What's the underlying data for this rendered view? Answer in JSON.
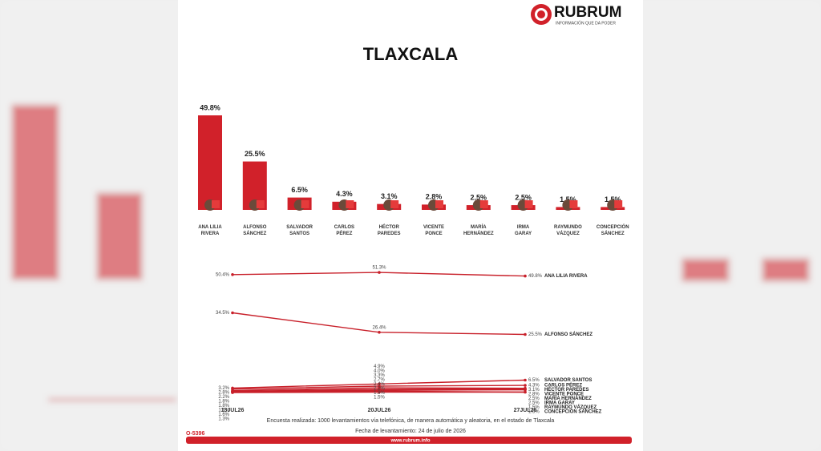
{
  "header": {
    "logo": "RUBRUM",
    "tagline": "INFORMACIÓN QUE DA PODER"
  },
  "chart_data": [
    {
      "type": "bar",
      "title": "TLAXCALA",
      "color": "#d1212a",
      "categories": [
        "ANA LILIA RIVERA",
        "ALFONSO SÁNCHEZ",
        "SALVADOR SANTOS",
        "CARLOS PÉREZ",
        "HÉCTOR PAREDES",
        "VICENTE PONCE",
        "MARÍA HERNÁNDEZ",
        "IRMA GARAY",
        "RAYMUNDO VÁZQUEZ",
        "CONCEPCIÓN SÁNCHEZ"
      ],
      "values": [
        49.8,
        25.5,
        6.5,
        4.3,
        3.1,
        2.8,
        2.5,
        2.5,
        1.5,
        1.5
      ],
      "value_labels": [
        "49.8%",
        "25.5%",
        "6.5%",
        "4.3%",
        "3.1%",
        "2.8%",
        "2.5%",
        "2.5%",
        "1.5%",
        "1.5%"
      ]
    },
    {
      "type": "line",
      "categories": [
        "13JUL26",
        "20JUL26",
        "27JUL26"
      ],
      "series": [
        {
          "name": "ANA LILIA RIVERA",
          "color": "#c8202a",
          "values": [
            50.4,
            51.3,
            49.8
          ],
          "value_labels": [
            "50.4%",
            "51.3%",
            "49.8%"
          ]
        },
        {
          "name": "ALFONSO SÁNCHEZ",
          "color": "#c8202a",
          "values": [
            34.5,
            26.4,
            25.5
          ],
          "value_labels": [
            "34.5%",
            "26.4%",
            "25.5%"
          ]
        },
        {
          "name": "SALVADOR SANTOS",
          "color": "#c8202a",
          "values": [
            3.2,
            4.9,
            6.5
          ],
          "value_labels": [
            "3.2%",
            "4.9%",
            "6.5%"
          ]
        },
        {
          "name": "CARLOS PÉREZ",
          "color": "#c8202a",
          "values": [
            2.8,
            4.0,
            4.3
          ],
          "value_labels": [
            "2.8%",
            "4.0%",
            "4.3%"
          ]
        },
        {
          "name": "HÉCTOR PAREDES",
          "color": "#c8202a",
          "values": [
            2.2,
            3.3,
            3.1
          ],
          "value_labels": [
            "2.2%",
            "3.3%",
            "3.1%"
          ]
        },
        {
          "name": "VICENTE PONCE",
          "color": "#c8202a",
          "values": [
            1.8,
            2.7,
            2.8
          ],
          "value_labels": [
            "1.8%",
            "2.7%",
            "2.8%"
          ]
        },
        {
          "name": "MARÍA HERNÁNDEZ",
          "color": "#c8202a",
          "values": [
            1.8,
            2.4,
            2.5
          ],
          "value_labels": [
            "1.8%",
            "2.4%",
            "2.5%"
          ]
        },
        {
          "name": "IRMA GARAY",
          "color": "#c8202a",
          "values": [
            1.6,
            2.2,
            2.5
          ],
          "value_labels": [
            "1.6%",
            "2.2%",
            "2.5%"
          ]
        },
        {
          "name": "RAYMUNDO VÁZQUEZ",
          "color": "#c8202a",
          "values": [
            1.6,
            1.9,
            1.5
          ],
          "value_labels": [
            "1.6%",
            "1.9%",
            "1.5%"
          ]
        },
        {
          "name": "CONCEPCIÓN SÁNCHEZ",
          "color": "#c8202a",
          "values": [
            1.3,
            1.5,
            1.5
          ],
          "value_labels": [
            "1.3%",
            "1.5%",
            "1.5%"
          ]
        }
      ]
    }
  ],
  "footer": {
    "note": "Encuesta realizada: 1000 levantamientos vía telefónica, de manera automática y aleatoria, en el estado de Tlaxcala",
    "date": "Fecha de levantamiento: 24 de julio de 2026",
    "code": "O-5396",
    "url": "www.rubrum.info"
  }
}
